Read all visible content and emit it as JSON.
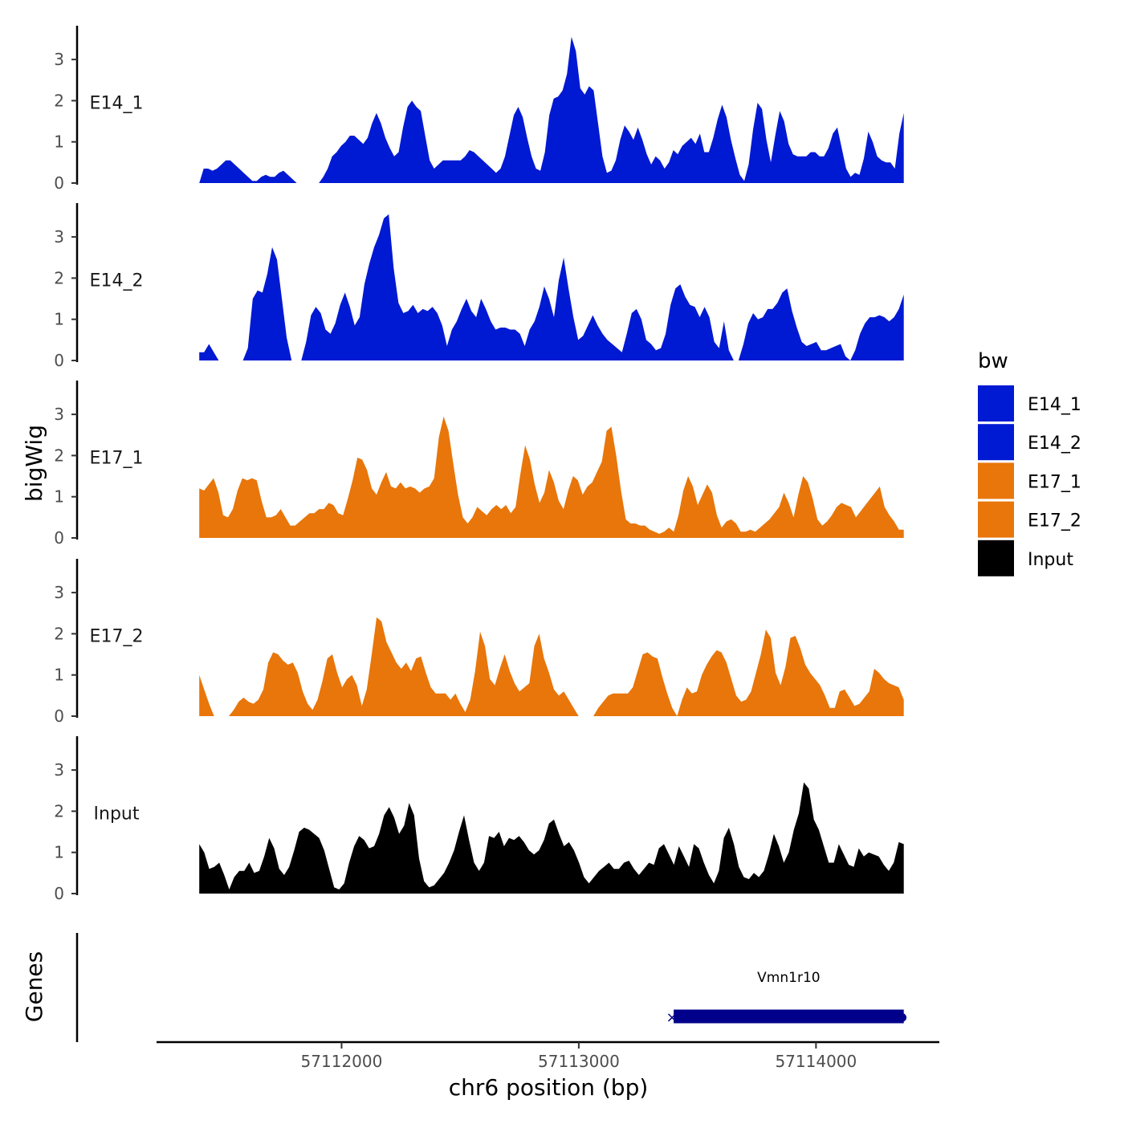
{
  "chart_data": {
    "type": "area",
    "title": "",
    "xlabel": "chr6 position (bp)",
    "ylabel": "bigWig",
    "genes_label": "Genes",
    "x_range": [
      57111400,
      57114370
    ],
    "x_view": [
      57111220,
      57114520
    ],
    "xticks": [
      57112000,
      57113000,
      57114000
    ],
    "xtick_labels": [
      "57112000",
      "57113000",
      "57114000"
    ],
    "ylim": [
      0,
      3.7
    ],
    "yticks": [
      0,
      1,
      2,
      3
    ],
    "ytick_labels": [
      "0",
      "1",
      "2",
      "3"
    ],
    "legend": {
      "title": "bw",
      "entries": [
        {
          "name": "E14_1",
          "color": "#0019D3"
        },
        {
          "name": "E14_2",
          "color": "#0019D3"
        },
        {
          "name": "E17_1",
          "color": "#E8760A"
        },
        {
          "name": "E17_2",
          "color": "#E8760A"
        },
        {
          "name": "Input",
          "color": "#000000"
        }
      ]
    },
    "series": [
      {
        "name": "E14_1",
        "color": "#0019D3",
        "start": 57111400,
        "end": 57114370,
        "values": [
          0,
          0.35,
          0.35,
          0.3,
          0.35,
          0.45,
          0.55,
          0.55,
          0.45,
          0.35,
          0.25,
          0.15,
          0.05,
          0.05,
          0.15,
          0.2,
          0.15,
          0.15,
          0.25,
          0.3,
          0.2,
          0.1,
          0,
          0,
          0,
          0,
          0,
          0,
          0.15,
          0.35,
          0.65,
          0.75,
          0.9,
          1.0,
          1.15,
          1.15,
          1.05,
          0.95,
          1.1,
          1.45,
          1.7,
          1.45,
          1.1,
          0.85,
          0.65,
          0.75,
          1.35,
          1.85,
          2.0,
          1.85,
          1.75,
          1.15,
          0.55,
          0.35,
          0.45,
          0.55,
          0.55,
          0.55,
          0.55,
          0.55,
          0.65,
          0.8,
          0.75,
          0.65,
          0.55,
          0.45,
          0.35,
          0.25,
          0.35,
          0.65,
          1.15,
          1.65,
          1.85,
          1.6,
          1.1,
          0.65,
          0.35,
          0.3,
          0.75,
          1.65,
          2.05,
          2.1,
          2.25,
          2.65,
          3.55,
          3.2,
          2.3,
          2.15,
          2.35,
          2.25,
          1.45,
          0.65,
          0.25,
          0.3,
          0.55,
          1.05,
          1.4,
          1.25,
          1.05,
          1.35,
          1.05,
          0.7,
          0.45,
          0.65,
          0.55,
          0.35,
          0.5,
          0.8,
          0.7,
          0.9,
          1.0,
          1.1,
          0.95,
          1.2,
          0.75,
          0.75,
          1.1,
          1.55,
          1.9,
          1.6,
          1.05,
          0.6,
          0.2,
          0.05,
          0.45,
          1.3,
          1.95,
          1.8,
          1.05,
          0.5,
          1.15,
          1.75,
          1.5,
          0.95,
          0.7,
          0.65,
          0.65,
          0.65,
          0.75,
          0.75,
          0.65,
          0.65,
          0.85,
          1.2,
          1.35,
          0.85,
          0.35,
          0.15,
          0.25,
          0.2,
          0.6,
          1.25,
          1.0,
          0.65,
          0.55,
          0.5,
          0.5,
          0.35,
          1.2,
          1.7
        ]
      },
      {
        "name": "E14_2",
        "color": "#0019D3",
        "start": 57111400,
        "end": 57114370,
        "values": [
          0.2,
          0.2,
          0.4,
          0.2,
          0,
          0,
          0,
          0,
          0,
          0,
          0.3,
          1.5,
          1.7,
          1.65,
          2.1,
          2.75,
          2.45,
          1.5,
          0.55,
          0,
          0,
          0,
          0.45,
          1.1,
          1.3,
          1.15,
          0.75,
          0.65,
          0.9,
          1.35,
          1.65,
          1.3,
          0.85,
          1.05,
          1.85,
          2.35,
          2.75,
          3.05,
          3.45,
          3.55,
          2.25,
          1.4,
          1.15,
          1.2,
          1.35,
          1.15,
          1.25,
          1.2,
          1.3,
          1.15,
          0.85,
          0.35,
          0.75,
          0.95,
          1.25,
          1.5,
          1.2,
          1.05,
          1.5,
          1.25,
          0.95,
          0.75,
          0.8,
          0.8,
          0.75,
          0.75,
          0.65,
          0.35,
          0.75,
          0.95,
          1.3,
          1.8,
          1.5,
          1.05,
          1.95,
          2.5,
          1.75,
          1.05,
          0.5,
          0.6,
          0.85,
          1.1,
          0.85,
          0.65,
          0.5,
          0.4,
          0.3,
          0.2,
          0.65,
          1.15,
          1.25,
          1.0,
          0.5,
          0.4,
          0.25,
          0.3,
          0.65,
          1.35,
          1.75,
          1.85,
          1.55,
          1.35,
          1.3,
          1.05,
          1.3,
          1.05,
          0.45,
          0.3,
          0.95,
          0.25,
          0,
          0,
          0.4,
          0.9,
          1.15,
          1.0,
          1.05,
          1.25,
          1.25,
          1.4,
          1.65,
          1.75,
          1.2,
          0.8,
          0.45,
          0.35,
          0.4,
          0.45,
          0.25,
          0.25,
          0.3,
          0.35,
          0.4,
          0.1,
          0,
          0.25,
          0.65,
          0.9,
          1.05,
          1.05,
          1.1,
          1.05,
          0.95,
          1.05,
          1.25,
          1.6
        ]
      },
      {
        "name": "E17_1",
        "color": "#E8760A",
        "start": 57111400,
        "end": 57114370,
        "values": [
          1.2,
          1.15,
          1.3,
          1.45,
          1.1,
          0.55,
          0.5,
          0.7,
          1.15,
          1.45,
          1.4,
          1.45,
          1.4,
          0.9,
          0.5,
          0.5,
          0.55,
          0.7,
          0.5,
          0.3,
          0.3,
          0.4,
          0.5,
          0.6,
          0.6,
          0.7,
          0.7,
          0.85,
          0.8,
          0.6,
          0.55,
          0.95,
          1.4,
          1.95,
          1.9,
          1.65,
          1.2,
          1.05,
          1.35,
          1.6,
          1.25,
          1.2,
          1.35,
          1.2,
          1.25,
          1.2,
          1.1,
          1.2,
          1.25,
          1.45,
          2.45,
          2.95,
          2.6,
          1.8,
          1.05,
          0.5,
          0.35,
          0.5,
          0.75,
          0.65,
          0.55,
          0.7,
          0.8,
          0.7,
          0.8,
          0.6,
          0.75,
          1.55,
          2.25,
          1.9,
          1.3,
          0.85,
          1.1,
          1.65,
          1.35,
          0.9,
          0.7,
          1.15,
          1.5,
          1.4,
          1.05,
          1.25,
          1.35,
          1.6,
          1.85,
          2.6,
          2.7,
          2.0,
          1.15,
          0.45,
          0.35,
          0.35,
          0.3,
          0.3,
          0.2,
          0.15,
          0.1,
          0.15,
          0.25,
          0.15,
          0.55,
          1.15,
          1.5,
          1.25,
          0.8,
          1.05,
          1.3,
          1.1,
          0.55,
          0.25,
          0.4,
          0.45,
          0.35,
          0.15,
          0.15,
          0.2,
          0.15,
          0.25,
          0.35,
          0.45,
          0.6,
          0.75,
          1.1,
          0.85,
          0.5,
          1.05,
          1.5,
          1.35,
          0.95,
          0.45,
          0.3,
          0.4,
          0.55,
          0.75,
          0.85,
          0.8,
          0.75,
          0.5,
          0.65,
          0.8,
          0.95,
          1.1,
          1.25,
          0.75,
          0.55,
          0.4,
          0.2,
          0.2
        ]
      },
      {
        "name": "E17_2",
        "color": "#E8760A",
        "start": 57111400,
        "end": 57114370,
        "values": [
          1.0,
          0.65,
          0.3,
          0,
          0,
          0,
          0,
          0.15,
          0.35,
          0.45,
          0.35,
          0.3,
          0.4,
          0.65,
          1.3,
          1.55,
          1.5,
          1.35,
          1.25,
          1.3,
          1.05,
          0.6,
          0.3,
          0.15,
          0.4,
          0.85,
          1.4,
          1.5,
          1.05,
          0.7,
          0.9,
          1.0,
          0.75,
          0.25,
          0.65,
          1.5,
          2.4,
          2.3,
          1.8,
          1.55,
          1.3,
          1.15,
          1.3,
          1.1,
          1.4,
          1.45,
          1.05,
          0.7,
          0.55,
          0.55,
          0.55,
          0.4,
          0.55,
          0.3,
          0.1,
          0.4,
          1.1,
          2.05,
          1.7,
          0.9,
          0.75,
          1.15,
          1.5,
          1.1,
          0.8,
          0.6,
          0.7,
          0.8,
          1.7,
          2.0,
          1.4,
          1.05,
          0.65,
          0.5,
          0.6,
          0.4,
          0.2,
          0,
          0,
          0,
          0,
          0.2,
          0.35,
          0.5,
          0.55,
          0.55,
          0.55,
          0.55,
          0.7,
          1.1,
          1.5,
          1.55,
          1.45,
          1.4,
          0.95,
          0.55,
          0.2,
          0,
          0.4,
          0.7,
          0.55,
          0.6,
          1.0,
          1.25,
          1.45,
          1.6,
          1.55,
          1.3,
          0.9,
          0.5,
          0.35,
          0.4,
          0.6,
          1.05,
          1.5,
          2.1,
          1.9,
          1.05,
          0.75,
          1.2,
          1.9,
          1.95,
          1.65,
          1.25,
          1.05,
          0.9,
          0.75,
          0.5,
          0.2,
          0.2,
          0.6,
          0.65,
          0.45,
          0.25,
          0.3,
          0.45,
          0.6,
          1.15,
          1.05,
          0.9,
          0.8,
          0.75,
          0.7,
          0.4
        ]
      },
      {
        "name": "Input",
        "color": "#000000",
        "start": 57111400,
        "end": 57114370,
        "values": [
          1.2,
          1.0,
          0.6,
          0.65,
          0.75,
          0.45,
          0.1,
          0.4,
          0.55,
          0.55,
          0.75,
          0.5,
          0.55,
          0.9,
          1.35,
          1.1,
          0.6,
          0.45,
          0.65,
          1.05,
          1.5,
          1.6,
          1.55,
          1.45,
          1.35,
          1.05,
          0.6,
          0.15,
          0.1,
          0.25,
          0.75,
          1.15,
          1.4,
          1.3,
          1.1,
          1.15,
          1.45,
          1.9,
          2.1,
          1.85,
          1.45,
          1.65,
          2.2,
          1.9,
          0.85,
          0.3,
          0.15,
          0.2,
          0.35,
          0.5,
          0.75,
          1.05,
          1.5,
          1.9,
          1.3,
          0.75,
          0.55,
          0.75,
          1.4,
          1.35,
          1.5,
          1.15,
          1.35,
          1.3,
          1.4,
          1.25,
          1.05,
          0.95,
          1.05,
          1.3,
          1.7,
          1.8,
          1.45,
          1.15,
          1.25,
          1.05,
          0.75,
          0.4,
          0.25,
          0.4,
          0.55,
          0.65,
          0.75,
          0.6,
          0.6,
          0.75,
          0.8,
          0.6,
          0.45,
          0.6,
          0.75,
          0.7,
          1.1,
          1.2,
          0.95,
          0.7,
          1.15,
          0.9,
          0.65,
          1.2,
          1.1,
          0.75,
          0.45,
          0.25,
          0.55,
          1.35,
          1.6,
          1.2,
          0.65,
          0.4,
          0.35,
          0.5,
          0.4,
          0.55,
          0.95,
          1.45,
          1.15,
          0.75,
          1.0,
          1.55,
          1.95,
          2.7,
          2.55,
          1.8,
          1.55,
          1.15,
          0.75,
          0.75,
          1.2,
          0.95,
          0.7,
          0.65,
          1.1,
          0.9,
          1.0,
          0.95,
          0.9,
          0.7,
          0.55,
          0.75,
          1.25,
          1.2
        ]
      }
    ],
    "genes": [
      {
        "name": "Vmn1r10",
        "start": 57113400,
        "end": 57114370,
        "color": "#00008B"
      }
    ]
  }
}
